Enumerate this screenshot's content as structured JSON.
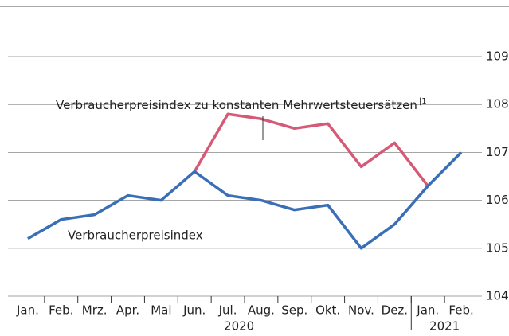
{
  "chart_data": {
    "type": "line",
    "categories": [
      "Jan.",
      "Feb.",
      "Mrz.",
      "Apr.",
      "Mai",
      "Jun.",
      "Jul.",
      "Aug.",
      "Sep.",
      "Okt.",
      "Nov.",
      "Dez.",
      "Jan.",
      "Feb."
    ],
    "years": [
      "2020",
      "2021"
    ],
    "series": [
      {
        "name": "Verbraucherpreisindex",
        "color": "#3a6fb7",
        "values": [
          105.2,
          105.6,
          105.7,
          106.1,
          106.0,
          106.6,
          106.1,
          106.0,
          105.8,
          105.9,
          105.0,
          105.5,
          106.3,
          107.0
        ]
      },
      {
        "name": "Verbraucherpreisindex zu konstanten Mehrwertsteuersätzen",
        "footnote": "1",
        "color": "#d55a78",
        "values": [
          null,
          null,
          null,
          null,
          null,
          106.6,
          107.8,
          107.7,
          107.5,
          107.6,
          106.7,
          107.2,
          106.3,
          null
        ]
      }
    ],
    "ylim": [
      104,
      109.6
    ],
    "yticks": [
      104,
      105,
      106,
      107,
      108,
      109
    ],
    "grid": true
  }
}
